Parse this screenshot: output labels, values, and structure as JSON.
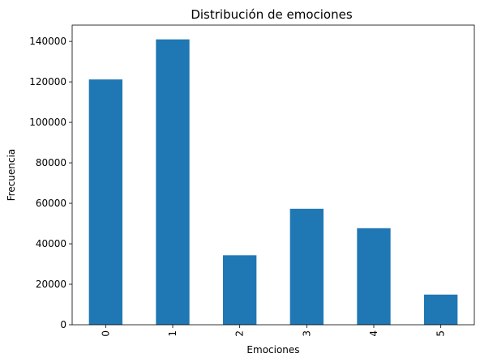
{
  "chart_data": {
    "type": "bar",
    "title": "Distribución de emociones",
    "xlabel": "Emociones",
    "ylabel": "Frecuencia",
    "categories": [
      "0",
      "1",
      "2",
      "3",
      "4",
      "5"
    ],
    "values": [
      121200,
      141000,
      34300,
      57300,
      47700,
      14900
    ],
    "ylim": [
      0,
      148050
    ],
    "yticks": [
      0,
      20000,
      40000,
      60000,
      80000,
      100000,
      120000,
      140000
    ],
    "ytick_labels": [
      "0",
      "20000",
      "40000",
      "60000",
      "80000",
      "100000",
      "120000",
      "140000"
    ],
    "xtick_rotation": 90,
    "grid": false,
    "legend": "none",
    "bar_color": "#1f77b4"
  }
}
